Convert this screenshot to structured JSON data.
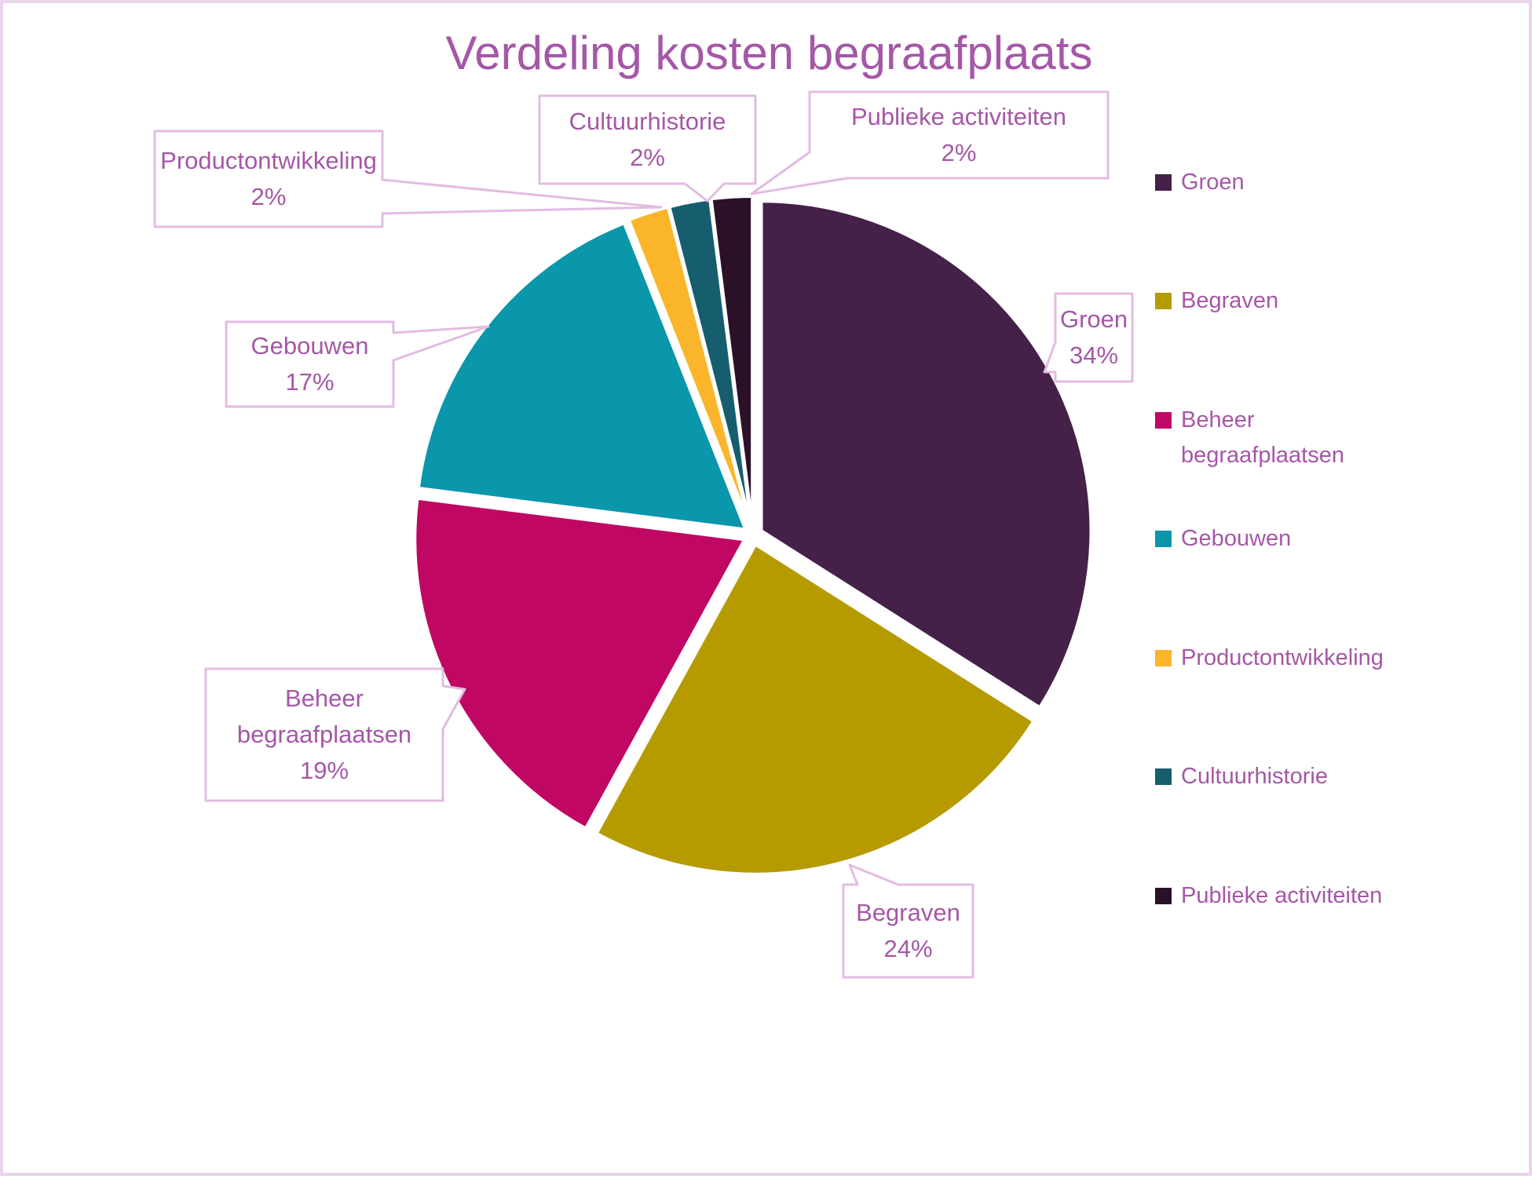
{
  "title": {
    "text": "Verdeling kosten begraafplaats"
  },
  "chart_data": {
    "type": "pie",
    "title": "Verdeling kosten begraafplaats",
    "categories": [
      "Groen",
      "Begraven",
      "Beheer begraafplaatsen",
      "Gebouwen",
      "Productontwikkeling",
      "Cultuurhistorie",
      "Publieke activiteiten"
    ],
    "values": [
      34,
      24,
      19,
      17,
      2,
      2,
      2
    ],
    "percent_labels": [
      "34%",
      "24%",
      "19%",
      "17%",
      "2%",
      "2%",
      "2%"
    ],
    "colors": [
      "#452049",
      "#B59B00",
      "#C00764",
      "#0A96AB",
      "#FBB52A",
      "#165E6E",
      "#2A1128"
    ],
    "legend_position": "right",
    "direction": "clockwise",
    "start_angle_deg": 0,
    "data_label_style": "outside callout boxes with category name and percentage"
  },
  "style": {
    "text_color": "#A557A7",
    "callout_border": "#E3BBE1",
    "callout_fill": "#FFFFFF",
    "page_border": "#E9D4EA",
    "slice_stroke": "#FFFFFF",
    "background": "#FFFFFF"
  }
}
